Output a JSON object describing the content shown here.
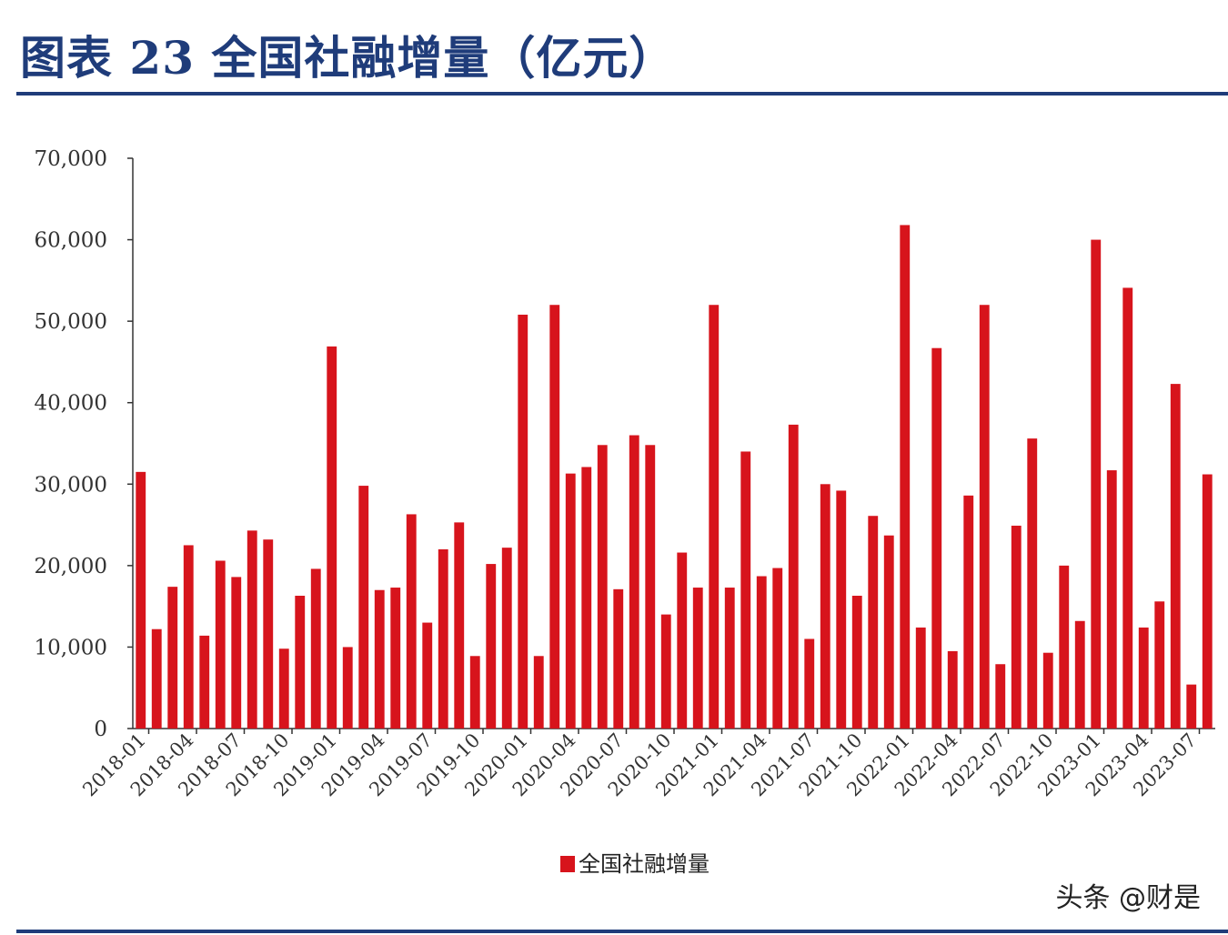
{
  "title": "图表 23  全国社融增量（亿元）",
  "watermark": "头条 @财是",
  "colors": {
    "bar": "#d7141c",
    "title": "#1f3c7a",
    "axis": "#333333"
  },
  "chart_data": {
    "type": "bar",
    "title": "全国社融增量（亿元）",
    "xlabel": "",
    "ylabel": "",
    "ylim": [
      0,
      70000
    ],
    "yticks": [
      0,
      10000,
      20000,
      30000,
      40000,
      50000,
      60000,
      70000
    ],
    "ytick_labels": [
      "0",
      "10,000",
      "20,000",
      "30,000",
      "40,000",
      "50,000",
      "60,000",
      "70,000"
    ],
    "xtick_labels": [
      "2018-01",
      "2018-04",
      "2018-07",
      "2018-10",
      "2019-01",
      "2019-04",
      "2019-07",
      "2019-10",
      "2020-01",
      "2020-04",
      "2020-07",
      "2020-10",
      "2021-01",
      "2021-04",
      "2021-07",
      "2021-10",
      "2022-01",
      "2022-04",
      "2022-07",
      "2022-10",
      "2023-01",
      "2023-04",
      "2023-07"
    ],
    "legend": "全国社融增量",
    "legend_position": "bottom-center",
    "categories": [
      "2018-01",
      "2018-02",
      "2018-03",
      "2018-04",
      "2018-05",
      "2018-06",
      "2018-07",
      "2018-08",
      "2018-09",
      "2018-10",
      "2018-11",
      "2018-12",
      "2019-01",
      "2019-02",
      "2019-03",
      "2019-04",
      "2019-05",
      "2019-06",
      "2019-07",
      "2019-08",
      "2019-09",
      "2019-10",
      "2019-11",
      "2019-12",
      "2020-01",
      "2020-02",
      "2020-03",
      "2020-04",
      "2020-05",
      "2020-06",
      "2020-07",
      "2020-08",
      "2020-09",
      "2020-10",
      "2020-11",
      "2020-12",
      "2021-01",
      "2021-02",
      "2021-03",
      "2021-04",
      "2021-05",
      "2021-06",
      "2021-07",
      "2021-08",
      "2021-09",
      "2021-10",
      "2021-11",
      "2021-12",
      "2022-01",
      "2022-02",
      "2022-03",
      "2022-04",
      "2022-05",
      "2022-06",
      "2022-07",
      "2022-08",
      "2022-09",
      "2022-10",
      "2022-11",
      "2022-12",
      "2023-01",
      "2023-02",
      "2023-03",
      "2023-04",
      "2023-05",
      "2023-06",
      "2023-07",
      "2023-08"
    ],
    "values": [
      31500,
      12200,
      17400,
      22500,
      11400,
      20600,
      18600,
      24300,
      23200,
      9800,
      16300,
      19600,
      46900,
      10000,
      29800,
      17000,
      17300,
      26300,
      13000,
      22000,
      25300,
      8900,
      20200,
      22200,
      50800,
      8900,
      52000,
      31300,
      32100,
      34800,
      17100,
      36000,
      34800,
      14000,
      21600,
      17300,
      52000,
      17300,
      34000,
      18700,
      19700,
      37300,
      11000,
      30000,
      29200,
      16300,
      26100,
      23700,
      61800,
      12400,
      46700,
      9500,
      28600,
      52000,
      7900,
      24900,
      35600,
      9300,
      20000,
      13200,
      60000,
      31700,
      54100,
      12400,
      15600,
      42300,
      5400,
      31200
    ]
  }
}
